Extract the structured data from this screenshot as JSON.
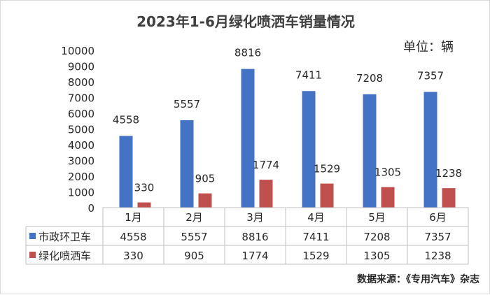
{
  "title": "2023年1-6月绿化喷洒车销量情况",
  "unit_label": "单位：辆",
  "source": "数据来源：《专用汽车》杂志",
  "chart_data": {
    "type": "bar",
    "title": "2023年1-6月绿化喷洒车销量情况",
    "categories": [
      "1月",
      "2月",
      "3月",
      "4月",
      "5月",
      "6月"
    ],
    "series": [
      {
        "name": "市政环卫车",
        "color": "#4472C4",
        "values": [
          4558,
          5557,
          8816,
          7411,
          7208,
          7357
        ]
      },
      {
        "name": "绿化喷洒车",
        "color": "#C0504D",
        "values": [
          330,
          905,
          1774,
          1529,
          1305,
          1238
        ]
      }
    ],
    "ylim": [
      0,
      10000
    ],
    "yticks": [
      0,
      1000,
      2000,
      3000,
      4000,
      5000,
      6000,
      7000,
      8000,
      9000,
      10000
    ],
    "grid": false,
    "legend": "data-table",
    "data_labels": true
  }
}
